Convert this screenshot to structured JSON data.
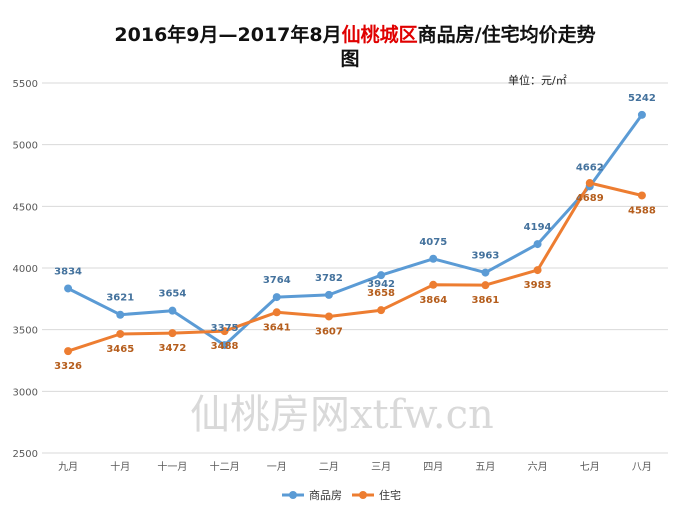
{
  "title": {
    "part1": "2016年9月—2017年8月",
    "highlight": "仙桃城区",
    "part2": "商品房/住宅均价走势",
    "line2": "图"
  },
  "unit_label": "单位：元/㎡",
  "watermark": "仙桃房网xtfw.cn",
  "colors": {
    "series1": "#5b9bd5",
    "series2": "#ed7d31",
    "title_highlight": "#e00000",
    "grid": "#d9d9d9"
  },
  "chart_data": {
    "type": "line",
    "categories": [
      "九月",
      "十月",
      "十一月",
      "十二月",
      "一月",
      "二月",
      "三月",
      "四月",
      "五月",
      "六月",
      "七月",
      "八月"
    ],
    "series": [
      {
        "name": "商品房",
        "values": [
          3834,
          3621,
          3654,
          3375,
          3764,
          3782,
          3942,
          4075,
          3963,
          4194,
          4662,
          5242
        ]
      },
      {
        "name": "住宅",
        "values": [
          3326,
          3465,
          3472,
          3488,
          3641,
          3607,
          3658,
          3864,
          3861,
          3983,
          4689,
          4588
        ]
      }
    ],
    "ylim": [
      2500,
      5500
    ],
    "yticks": [
      2500,
      3000,
      3500,
      4000,
      4500,
      5000,
      5500
    ],
    "grid": true,
    "legend": "bottom"
  }
}
